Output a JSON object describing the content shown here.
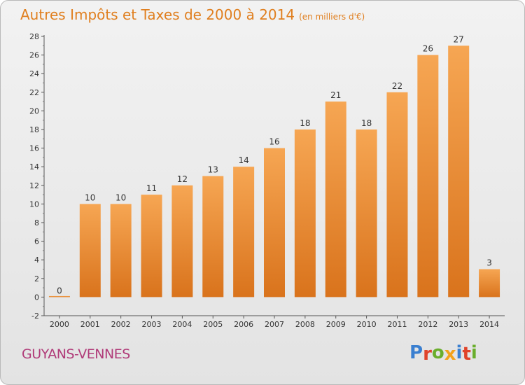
{
  "title": "Autres Impôts et Taxes de 2000 à 2014",
  "unit": "(en milliers d'€)",
  "commune": "GUYANS-VENNES",
  "logo_letters": [
    {
      "ch": "P",
      "color": "#3a7fd0"
    },
    {
      "ch": "r",
      "color": "#e0432b"
    },
    {
      "ch": "o",
      "color": "#6aae2c"
    },
    {
      "ch": "x",
      "color": "#f3a21b"
    },
    {
      "ch": "i",
      "color": "#3a7fd0"
    },
    {
      "ch": "t",
      "color": "#e0432b"
    },
    {
      "ch": "i",
      "color": "#6aae2c"
    }
  ],
  "chart_data": {
    "type": "bar",
    "categories": [
      "2000",
      "2001",
      "2002",
      "2003",
      "2004",
      "2005",
      "2006",
      "2007",
      "2008",
      "2009",
      "2010",
      "2011",
      "2012",
      "2013",
      "2014"
    ],
    "values": [
      0,
      10,
      10,
      11,
      12,
      13,
      14,
      16,
      18,
      21,
      18,
      22,
      26,
      27,
      3
    ],
    "value_labels": [
      "0",
      "10",
      "10",
      "11",
      "12",
      "13",
      "14",
      "16",
      "18",
      "21",
      "18",
      "22",
      "26",
      "27",
      "3"
    ],
    "yticks": [
      "-2",
      "0",
      "2",
      "4",
      "6",
      "8",
      "10",
      "12",
      "14",
      "16",
      "18",
      "20",
      "22",
      "24",
      "26",
      "28"
    ],
    "ylim": [
      -2,
      28
    ],
    "grid": false,
    "bar_color_top": "#f6a653",
    "bar_color_bottom": "#d9731c"
  }
}
